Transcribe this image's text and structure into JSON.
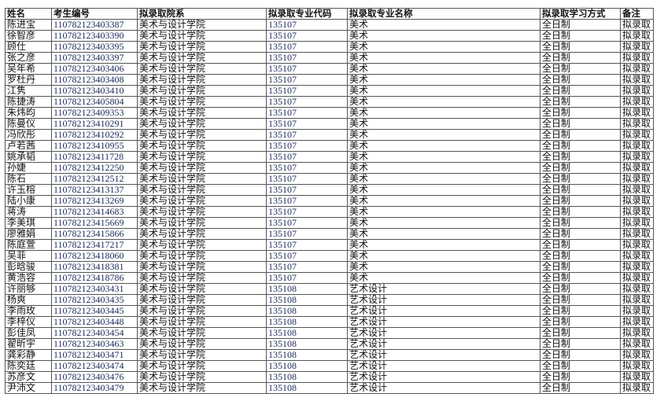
{
  "headers": [
    "姓名",
    "考生编号",
    "拟录取院系",
    "拟录取专业代码",
    "拟录取专业名称",
    "拟录取学习方式",
    "备注"
  ],
  "rows": [
    [
      "陈进宝",
      "110782123403387",
      "美术与设计学院",
      "135107",
      "美术",
      "全日制",
      "拟录取"
    ],
    [
      "徐智彦",
      "110782123403390",
      "美术与设计学院",
      "135107",
      "美术",
      "全日制",
      "拟录取"
    ],
    [
      "顾仕",
      "110782123403395",
      "美术与设计学院",
      "135107",
      "美术",
      "全日制",
      "拟录取"
    ],
    [
      "张之彦",
      "110782123403397",
      "美术与设计学院",
      "135107",
      "美术",
      "全日制",
      "拟录取"
    ],
    [
      "吴年希",
      "110782123403406",
      "美术与设计学院",
      "135107",
      "美术",
      "全日制",
      "拟录取"
    ],
    [
      "罗杜丹",
      "110782123403408",
      "美术与设计学院",
      "135107",
      "美术",
      "全日制",
      "拟录取"
    ],
    [
      "江隽",
      "110782123403410",
      "美术与设计学院",
      "135107",
      "美术",
      "全日制",
      "拟录取"
    ],
    [
      "陈捷涛",
      "110782123405804",
      "美术与设计学院",
      "135107",
      "美术",
      "全日制",
      "拟录取"
    ],
    [
      "朱炜昀",
      "110782123409353",
      "美术与设计学院",
      "135107",
      "美术",
      "全日制",
      "拟录取"
    ],
    [
      "陈曼仪",
      "110782123410291",
      "美术与设计学院",
      "135107",
      "美术",
      "全日制",
      "拟录取"
    ],
    [
      "冯欣彤",
      "110782123410292",
      "美术与设计学院",
      "135107",
      "美术",
      "全日制",
      "拟录取"
    ],
    [
      "卢若茜",
      "110782123410955",
      "美术与设计学院",
      "135107",
      "美术",
      "全日制",
      "拟录取"
    ],
    [
      "姚承韬",
      "110782123411728",
      "美术与设计学院",
      "135107",
      "美术",
      "全日制",
      "拟录取"
    ],
    [
      "孙婕",
      "110782123412250",
      "美术与设计学院",
      "135107",
      "美术",
      "全日制",
      "拟录取"
    ],
    [
      "陈石",
      "110782123412512",
      "美术与设计学院",
      "135107",
      "美术",
      "全日制",
      "拟录取"
    ],
    [
      "许玉榕",
      "110782123413137",
      "美术与设计学院",
      "135107",
      "美术",
      "全日制",
      "拟录取"
    ],
    [
      "陆小康",
      "110782123413269",
      "美术与设计学院",
      "135107",
      "美术",
      "全日制",
      "拟录取"
    ],
    [
      "蒋涛",
      "110782123414683",
      "美术与设计学院",
      "135107",
      "美术",
      "全日制",
      "拟录取"
    ],
    [
      "李美琪",
      "110782123415669",
      "美术与设计学院",
      "135107",
      "美术",
      "全日制",
      "拟录取"
    ],
    [
      "廖雅娟",
      "110782123415866",
      "美术与设计学院",
      "135107",
      "美术",
      "全日制",
      "拟录取"
    ],
    [
      "陈庭萱",
      "110782123417217",
      "美术与设计学院",
      "135107",
      "美术",
      "全日制",
      "拟录取"
    ],
    [
      "吴菲",
      "110782123418060",
      "美术与设计学院",
      "135107",
      "美术",
      "全日制",
      "拟录取"
    ],
    [
      "彭晗骏",
      "110782123418381",
      "美术与设计学院",
      "135107",
      "美术",
      "全日制",
      "拟录取"
    ],
    [
      "黄浩容",
      "110782123418786",
      "美术与设计学院",
      "135107",
      "美术",
      "全日制",
      "拟录取"
    ],
    [
      "许丽够",
      "110782123403431",
      "美术与设计学院",
      "135108",
      "艺术设计",
      "全日制",
      "拟录取"
    ],
    [
      "杨爽",
      "110782123403435",
      "美术与设计学院",
      "135108",
      "艺术设计",
      "全日制",
      "拟录取"
    ],
    [
      "李雨玫",
      "110782123403445",
      "美术与设计学院",
      "135108",
      "艺术设计",
      "全日制",
      "拟录取"
    ],
    [
      "李梓仪",
      "110782123403448",
      "美术与设计学院",
      "135108",
      "艺术设计",
      "全日制",
      "拟录取"
    ],
    [
      "彭佳凤",
      "110782123403454",
      "美术与设计学院",
      "135108",
      "艺术设计",
      "全日制",
      "拟录取"
    ],
    [
      "翟昕宇",
      "110782123403463",
      "美术与设计学院",
      "135108",
      "艺术设计",
      "全日制",
      "拟录取"
    ],
    [
      "龚彩静",
      "110782123403471",
      "美术与设计学院",
      "135108",
      "艺术设计",
      "全日制",
      "拟录取"
    ],
    [
      "陈奕廷",
      "110782123403474",
      "美术与设计学院",
      "135108",
      "艺术设计",
      "全日制",
      "拟录取"
    ],
    [
      "苏彦文",
      "110782123403476",
      "美术与设计学院",
      "135108",
      "艺术设计",
      "全日制",
      "拟录取"
    ],
    [
      "尹沛文",
      "110782123403479",
      "美术与设计学院",
      "135108",
      "艺术设计",
      "全日制",
      "拟录取"
    ]
  ]
}
